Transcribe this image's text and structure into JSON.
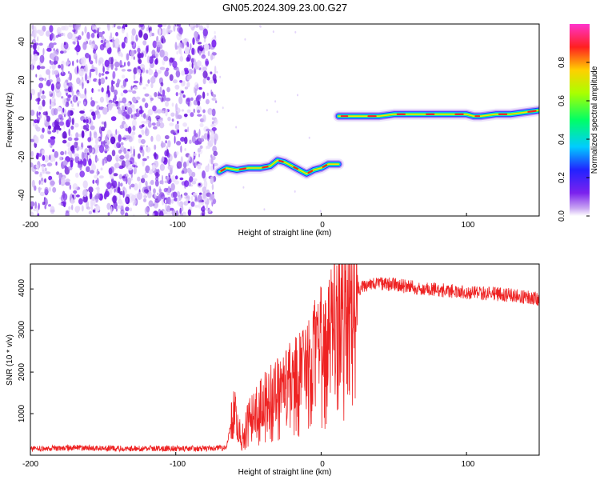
{
  "figure_title": "GN05.2024.309.23.00.G27",
  "colors": {
    "snr_line": "#ee2222",
    "noise_purple": "#7a22ee",
    "frame": "#000000"
  },
  "chart_data": [
    {
      "type": "heatmap",
      "title": "GN05.2024.309.23.00.G27",
      "xlabel": "Height of straight line (km)",
      "ylabel": "Frequency (Hz)",
      "xlim": [
        -200,
        150
      ],
      "ylim": [
        -50,
        50
      ],
      "xticks": [
        -200,
        -100,
        0,
        100
      ],
      "yticks": [
        -40,
        -20,
        0,
        20,
        40
      ],
      "colorbar": {
        "label": "Normalized spectral amplitude",
        "range": [
          0,
          1
        ],
        "ticks": [
          "0.0",
          "0.2",
          "0.4",
          "0.6",
          "0.8"
        ],
        "colormap": "rainbow (white → purple → blue → cyan → green → yellow → red → magenta)"
      },
      "regions": [
        {
          "name": "noise",
          "x_range": [
            -200,
            -72
          ],
          "description": "scattered low-amplitude purple speckle across all frequencies"
        },
        {
          "name": "negative_track",
          "x": [
            -70,
            -65,
            -58,
            -50,
            -42,
            -35,
            -30,
            -25,
            -20,
            -15,
            -10,
            -5,
            0,
            5,
            12
          ],
          "y": [
            -27,
            -25,
            -26,
            -25,
            -25,
            -24,
            -21,
            -22,
            -24,
            -26,
            -28,
            -26,
            -25,
            -23,
            -23
          ],
          "peak_amplitude": 0.95
        },
        {
          "name": "positive_track",
          "x": [
            12,
            20,
            30,
            40,
            50,
            60,
            70,
            80,
            90,
            100,
            105,
            110,
            120,
            130,
            140,
            150
          ],
          "y": [
            2,
            2,
            2,
            2,
            3,
            3,
            3,
            3,
            3,
            3,
            2,
            2,
            3,
            3,
            4,
            5
          ],
          "peak_amplitude": 0.95
        }
      ]
    },
    {
      "type": "line",
      "title": "",
      "xlabel": "Height of straight line (km)",
      "ylabel": "SNR (10 * v/v)",
      "xlim": [
        -200,
        150
      ],
      "ylim": [
        0,
        4600
      ],
      "xticks": [
        -200,
        -100,
        0,
        100
      ],
      "yticks": [
        1000,
        2000,
        3000,
        4000
      ],
      "series": [
        {
          "x": [
            -200,
            -170,
            -140,
            -110,
            -80,
            -65,
            -60,
            -55,
            -50,
            -45,
            -40,
            -35,
            -30,
            -25,
            -20,
            -15,
            -10,
            -5,
            0,
            5,
            10,
            15,
            20,
            25,
            30,
            35,
            40,
            50,
            60,
            70,
            80,
            90,
            100,
            110,
            120,
            130,
            140,
            150
          ],
          "y": [
            150,
            180,
            160,
            160,
            160,
            180,
            1200,
            400,
            900,
            1100,
            1300,
            1500,
            1600,
            1800,
            1900,
            2100,
            2300,
            2600,
            2900,
            3200,
            3500,
            3700,
            3850,
            4000,
            4050,
            4100,
            4120,
            4100,
            4050,
            4000,
            3980,
            3950,
            3920,
            3900,
            3880,
            3850,
            3800,
            3750
          ]
        }
      ]
    }
  ]
}
